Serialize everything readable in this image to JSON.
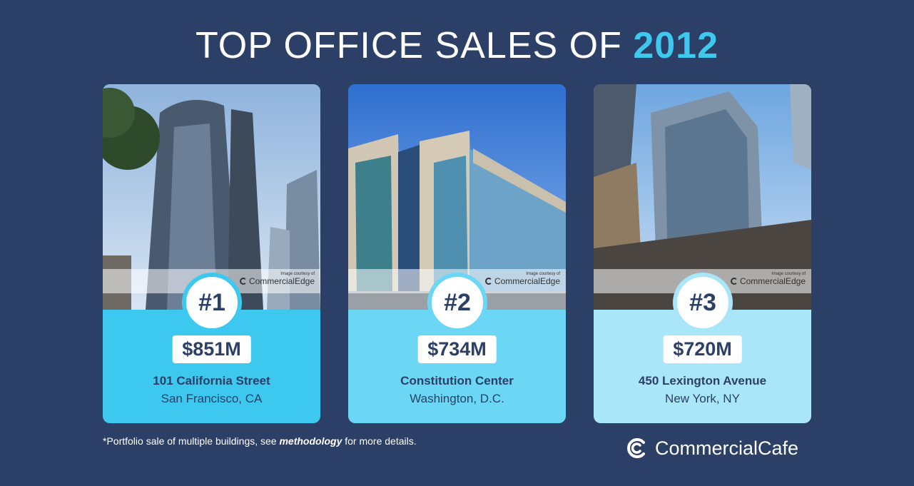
{
  "title": {
    "main": "TOP OFFICE SALES OF ",
    "year": "2012"
  },
  "courtesy": {
    "small": "Image courtesy of",
    "brand": "CommercialEdge"
  },
  "cards": [
    {
      "rank": "#1",
      "price": "$851M",
      "name": "101 California Street",
      "location": "San Francisco, CA"
    },
    {
      "rank": "#2",
      "price": "$734M",
      "name": "Constitution Center",
      "location": "Washington, D.C."
    },
    {
      "rank": "#3",
      "price": "$720M",
      "name": "450 Lexington Avenue",
      "location": "New York, NY"
    }
  ],
  "footnote": {
    "before": "*Portfolio sale of multiple buildings, see ",
    "link": "methodology",
    "after": " for more details."
  },
  "brand": {
    "name": "CommercialCafe",
    "icon": "commercialcafe-logo-icon"
  },
  "colors": {
    "background": "#2b3f67",
    "accent": "#3fc8ee",
    "card1": "#3dc9ef",
    "card2": "#6cd6f5",
    "card3": "#a9e6fa"
  }
}
